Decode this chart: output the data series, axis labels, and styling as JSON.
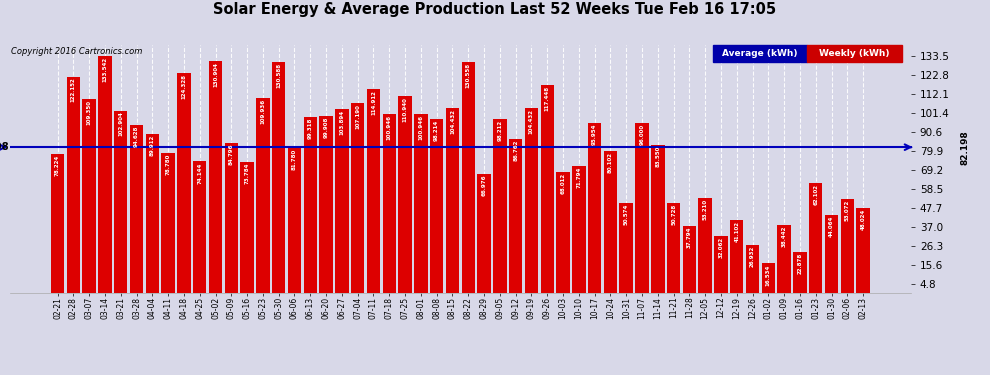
{
  "title": "Solar Energy & Average Production Last 52 Weeks Tue Feb 16 17:05",
  "copyright": "Copyright 2016 Cartronics.com",
  "average_line": 82.198,
  "ylabel_right_values": [
    133.5,
    122.8,
    112.1,
    101.4,
    90.6,
    79.9,
    69.2,
    58.5,
    47.7,
    37.0,
    26.3,
    15.6,
    4.8
  ],
  "bar_color": "#dd0000",
  "avg_line_color": "#0000bb",
  "background_color": "#d8d8e8",
  "legend_avg_bg": "#0000aa",
  "legend_weekly_bg": "#cc0000",
  "categories": [
    "02-21",
    "02-28",
    "03-07",
    "03-14",
    "03-21",
    "03-28",
    "04-04",
    "04-11",
    "04-18",
    "04-25",
    "05-02",
    "05-09",
    "05-16",
    "05-23",
    "05-30",
    "06-06",
    "06-13",
    "06-20",
    "06-27",
    "07-04",
    "07-11",
    "07-18",
    "07-25",
    "08-01",
    "08-08",
    "08-15",
    "08-22",
    "08-29",
    "09-05",
    "09-12",
    "09-19",
    "09-26",
    "10-03",
    "10-10",
    "10-17",
    "10-24",
    "10-31",
    "11-07",
    "11-14",
    "11-21",
    "11-28",
    "12-05",
    "12-12",
    "12-19",
    "12-26",
    "01-02",
    "01-09",
    "01-16",
    "01-23",
    "01-30",
    "02-06",
    "02-13"
  ],
  "bar_values": [
    78.224,
    122.152,
    109.35,
    133.542,
    102.904,
    94.628,
    89.912,
    78.78,
    124.328,
    74.144,
    130.904,
    84.796,
    73.784,
    109.936,
    130.588,
    81.78,
    99.318,
    99.908,
    103.894,
    107.19,
    114.912,
    100.946,
    110.94,
    100.946,
    98.214,
    104.432,
    130.558,
    66.976,
    98.212,
    86.762,
    104.432,
    117.448,
    68.012,
    71.794,
    95.954,
    80.102,
    50.574,
    96.0,
    83.55,
    50.728,
    37.794,
    53.21,
    32.062,
    41.102,
    26.932,
    16.534,
    38.442,
    22.878,
    62.102,
    44.064,
    53.072,
    48.024
  ],
  "ylim_min": 0,
  "ylim_max": 140
}
